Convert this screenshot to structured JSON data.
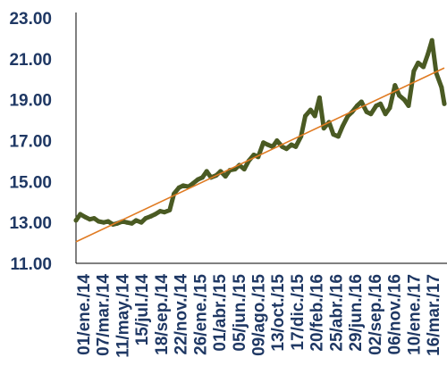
{
  "chart_data": {
    "type": "line",
    "title": "",
    "xlabel": "",
    "ylabel": "",
    "ylim": [
      11.0,
      23.0
    ],
    "y_ticks": [
      "11.00",
      "13.00",
      "15.00",
      "17.00",
      "19.00",
      "21.00",
      "23.00"
    ],
    "x_ticks": [
      "01/ene./14",
      "07/mar./14",
      "11/may./14",
      "15/jul./14",
      "18/sep./14",
      "22/nov./14",
      "26/ene./15",
      "01/abr./15",
      "05/jun./15",
      "09/ago./15",
      "13/oct./15",
      "17/dic./15",
      "20/feb./16",
      "25/abr./16",
      "29/jun./16",
      "02/sep./16",
      "06/nov./16",
      "10/ene./17",
      "16/mar./17"
    ],
    "x_range": [
      "2014-01-01",
      "2017-04-10"
    ],
    "grid": false,
    "legend": "none",
    "colors": {
      "series": "#4a5a23",
      "trend": "#e07b23",
      "axis_text": "#1f3864",
      "axis_line": "#000000"
    },
    "series": [
      {
        "style": "thick-line",
        "x": [
          "2014-01-01",
          "2014-01-15",
          "2014-02-01",
          "2014-02-15",
          "2014-03-01",
          "2014-03-15",
          "2014-04-01",
          "2014-04-15",
          "2014-05-01",
          "2014-05-15",
          "2014-06-01",
          "2014-06-15",
          "2014-07-01",
          "2014-07-15",
          "2014-08-01",
          "2014-08-15",
          "2014-09-01",
          "2014-09-15",
          "2014-10-01",
          "2014-10-15",
          "2014-11-01",
          "2014-11-15",
          "2014-12-01",
          "2014-12-15",
          "2015-01-01",
          "2015-01-15",
          "2015-02-01",
          "2015-02-15",
          "2015-03-01",
          "2015-03-15",
          "2015-04-01",
          "2015-04-15",
          "2015-05-01",
          "2015-05-15",
          "2015-06-01",
          "2015-06-15",
          "2015-07-01",
          "2015-07-15",
          "2015-08-01",
          "2015-08-15",
          "2015-09-01",
          "2015-09-15",
          "2015-10-01",
          "2015-10-15",
          "2015-11-01",
          "2015-11-15",
          "2015-12-01",
          "2015-12-15",
          "2016-01-01",
          "2016-01-15",
          "2016-02-01",
          "2016-02-15",
          "2016-03-01",
          "2016-03-15",
          "2016-04-01",
          "2016-04-15",
          "2016-05-01",
          "2016-05-15",
          "2016-06-01",
          "2016-06-15",
          "2016-07-01",
          "2016-07-15",
          "2016-08-01",
          "2016-08-15",
          "2016-09-01",
          "2016-09-15",
          "2016-10-01",
          "2016-10-15",
          "2016-11-01",
          "2016-11-15",
          "2016-12-01",
          "2016-12-15",
          "2017-01-01",
          "2017-01-15",
          "2017-02-01",
          "2017-02-15",
          "2017-03-01",
          "2017-03-15",
          "2017-04-01",
          "2017-04-10"
        ],
        "values": [
          13.1,
          13.4,
          13.25,
          13.15,
          13.2,
          13.05,
          13.0,
          13.05,
          12.9,
          12.95,
          13.05,
          13.0,
          12.95,
          13.1,
          13.0,
          13.2,
          13.3,
          13.4,
          13.55,
          13.5,
          13.6,
          14.4,
          14.7,
          14.8,
          14.75,
          14.9,
          15.1,
          15.2,
          15.5,
          15.2,
          15.3,
          15.5,
          15.25,
          15.55,
          15.6,
          15.8,
          15.6,
          16.0,
          16.3,
          16.2,
          16.9,
          16.8,
          16.7,
          17.0,
          16.7,
          16.6,
          16.8,
          16.7,
          17.2,
          18.2,
          18.5,
          18.2,
          19.1,
          17.6,
          17.9,
          17.3,
          17.2,
          17.7,
          18.2,
          18.4,
          18.7,
          18.9,
          18.4,
          18.3,
          18.7,
          18.8,
          18.3,
          18.6,
          19.7,
          19.2,
          19.0,
          18.7,
          20.4,
          20.8,
          20.6,
          21.2,
          21.9,
          20.3,
          19.6,
          18.8
        ]
      },
      {
        "style": "trend",
        "x": [
          "2014-01-01",
          "2017-04-10"
        ],
        "values": [
          12.05,
          20.55
        ]
      }
    ]
  }
}
